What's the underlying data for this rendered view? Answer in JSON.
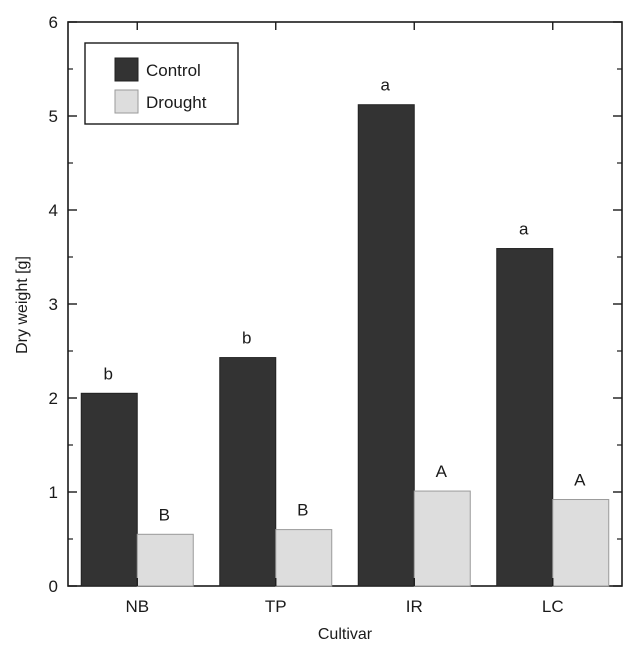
{
  "chart_data": {
    "type": "bar",
    "xlabel": "Cultivar",
    "ylabel": "Dry weight [g]",
    "ylim": [
      0,
      6
    ],
    "yticks": [
      0,
      1,
      2,
      3,
      4,
      5,
      6
    ],
    "categories": [
      "NB",
      "TP",
      "IR",
      "LC"
    ],
    "series": [
      {
        "name": "Control",
        "color": "#333333",
        "values": [
          2.05,
          2.43,
          5.12,
          3.59
        ],
        "annotations": [
          "b",
          "b",
          "a",
          "a"
        ]
      },
      {
        "name": "Drought",
        "color": "#dddddd",
        "values": [
          0.55,
          0.6,
          1.01,
          0.92
        ],
        "annotations": [
          "B",
          "B",
          "A",
          "A"
        ]
      }
    ],
    "legend": {
      "position": "top-left"
    },
    "grid": false
  }
}
